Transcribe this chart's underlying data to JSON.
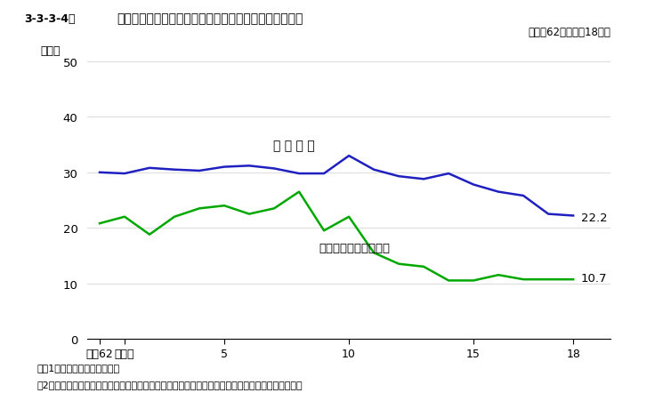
{
  "header_label": "3-3-3-4図",
  "header_title": "保護観察新規受理人員に占める薬物犯罪者の比率の推移",
  "subtitle": "（昭和62年～平成18年）",
  "ylabel": "（％）",
  "ylim": [
    0,
    50
  ],
  "yticks": [
    0,
    10,
    20,
    30,
    40,
    50
  ],
  "xlim": [
    -0.5,
    20.5
  ],
  "xtick_positions": [
    0,
    1,
    5,
    10,
    15,
    19
  ],
  "xtick_labels": [
    "昭和62",
    "平成元",
    "5",
    "10",
    "15",
    "18"
  ],
  "note1": "注、1　保護統計年報による。",
  "note2": "　2「薬物犯罪者」とは，麻薬取締法，覚せい剤取締法及び毒劇法の各違反の罪を犯した者をいう。",
  "blue_line_label": "仮 釈 放 者",
  "green_line_label": "保護観察付執行猫予者",
  "blue_end_label": "22.2",
  "green_end_label": "10.7",
  "blue_color": "#2020c0",
  "green_color": "#00a800",
  "blue_x": [
    0,
    1,
    2,
    3,
    4,
    5,
    6,
    7,
    8,
    9,
    10,
    11,
    12,
    13,
    14,
    15,
    16,
    17,
    18,
    19
  ],
  "blue_y": [
    30.0,
    29.8,
    30.8,
    30.5,
    30.3,
    31.0,
    31.2,
    30.7,
    29.8,
    29.8,
    33.0,
    30.5,
    29.3,
    28.8,
    29.8,
    27.8,
    26.5,
    25.8,
    22.5,
    22.2
  ],
  "green_x": [
    0,
    1,
    2,
    3,
    4,
    5,
    6,
    7,
    8,
    9,
    10,
    11,
    12,
    13,
    14,
    15,
    16,
    17,
    18,
    19
  ],
  "green_y": [
    20.8,
    22.0,
    18.8,
    22.0,
    23.5,
    24.0,
    22.5,
    23.5,
    26.5,
    19.5,
    22.0,
    15.5,
    13.5,
    13.0,
    10.5,
    10.5,
    11.5,
    10.7,
    10.7,
    10.7
  ],
  "header_gray": "#d0d0d0",
  "header_white": "#f0f0f0",
  "fig_bg": "#ffffff"
}
